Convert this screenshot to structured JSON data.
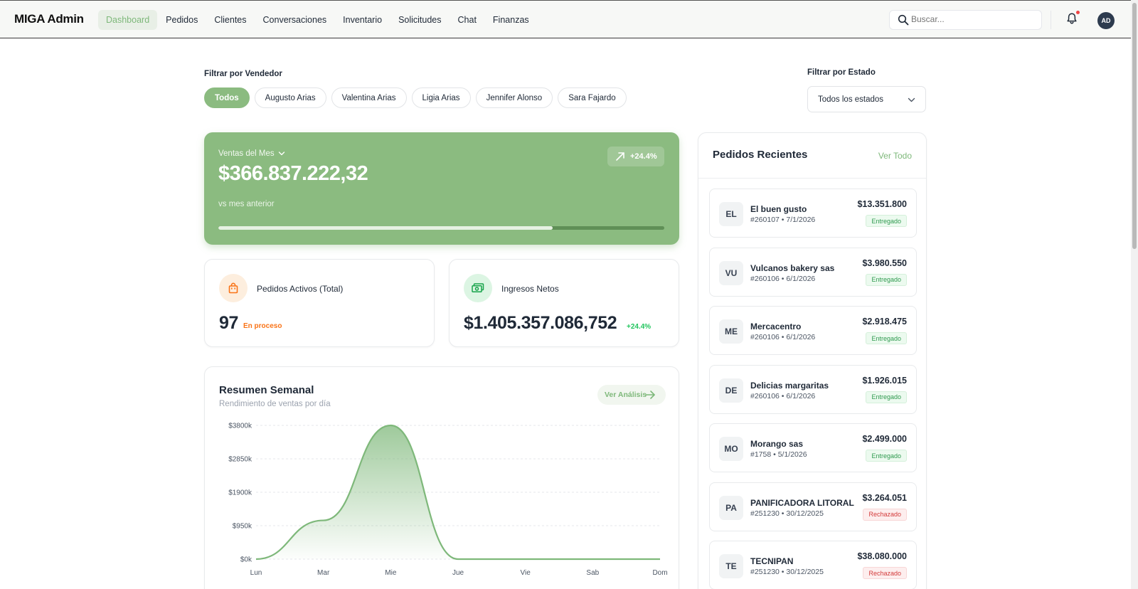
{
  "app": {
    "brand": "MIGA Admin"
  },
  "nav": [
    "Dashboard",
    "Pedidos",
    "Clientes",
    "Conversaciones",
    "Inventario",
    "Solicitudes",
    "Chat",
    "Finanzas"
  ],
  "nav_active": "Dashboard",
  "search": {
    "placeholder": "Buscar...",
    "value": ""
  },
  "user": {
    "initials": "AD"
  },
  "filters": {
    "vendor_label": "Filtrar por Vendedor",
    "vendors": [
      "Todos",
      "Augusto Arias",
      "Valentina Arias",
      "Ligia Arias",
      "Jennifer Alonso",
      "Sara Fajardo"
    ],
    "vendor_selected": "Todos",
    "status_label": "Filtrar por Estado",
    "status_selected": "Todos los estados"
  },
  "hero": {
    "label": "Ventas del Mes",
    "value": "$366.837.222,32",
    "badge": "+24.4%",
    "sub": "vs mes anterior",
    "progress": 0.75
  },
  "cards": {
    "active_orders": {
      "label": "Pedidos Activos (Total)",
      "value": "97",
      "note": "En proceso"
    },
    "net_income": {
      "label": "Ingresos Netos",
      "value": "$1.405.357.086,752",
      "note": "+24.4%"
    }
  },
  "weekly": {
    "title": "Resumen Semanal",
    "subtitle": "Rendimiento de ventas por día",
    "link": "Ver Análisis"
  },
  "chart_data": {
    "type": "area",
    "categories": [
      "Lun",
      "Mar",
      "Mie",
      "Jue",
      "Vie",
      "Sab",
      "Dom"
    ],
    "values": [
      0,
      1100,
      3800,
      0,
      0,
      0,
      0
    ],
    "ytick_labels": [
      "$0k",
      "$950k",
      "$1900k",
      "$2850k",
      "$3800k"
    ],
    "ylim": [
      0,
      3800
    ],
    "grid": true,
    "color": "#7eb87a"
  },
  "orders": {
    "title": "Pedidos Recientes",
    "link": "Ver Todo",
    "items": [
      {
        "initials": "EL",
        "name": "El buen gusto",
        "meta": "#260107 • 7/1/2026",
        "amount": "$13.351.800",
        "status": "Entregado",
        "ok": true
      },
      {
        "initials": "VU",
        "name": "Vulcanos bakery sas",
        "meta": "#260106 • 6/1/2026",
        "amount": "$3.980.550",
        "status": "Entregado",
        "ok": true
      },
      {
        "initials": "ME",
        "name": "Mercacentro",
        "meta": "#260106 • 6/1/2026",
        "amount": "$2.918.475",
        "status": "Entregado",
        "ok": true
      },
      {
        "initials": "DE",
        "name": "Delicias margaritas",
        "meta": "#260106 • 6/1/2026",
        "amount": "$1.926.015",
        "status": "Entregado",
        "ok": true
      },
      {
        "initials": "MO",
        "name": "Morango sas",
        "meta": "#1758 • 5/1/2026",
        "amount": "$2.499.000",
        "status": "Entregado",
        "ok": true
      },
      {
        "initials": "PA",
        "name": "PANIFICADORA LITORAL",
        "meta": "#251230 • 30/12/2025",
        "amount": "$3.264.051",
        "status": "Rechazado",
        "ok": false
      },
      {
        "initials": "TE",
        "name": "TECNIPAN",
        "meta": "#251230 • 30/12/2025",
        "amount": "$38.080.000",
        "status": "Rechazado",
        "ok": false
      }
    ]
  },
  "colors": {
    "accent": "#8bbb80",
    "accent_text": "#7eb87a",
    "orange": "#f97316",
    "green": "#22c55e"
  }
}
